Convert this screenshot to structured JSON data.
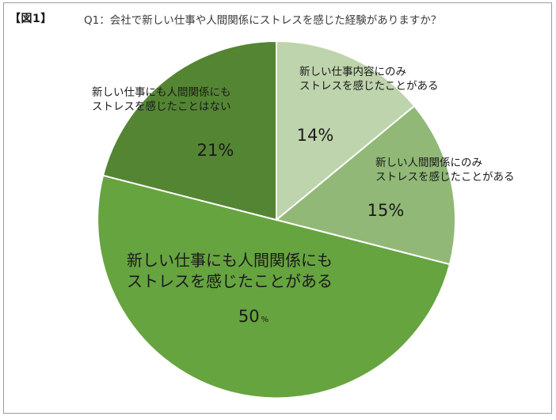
{
  "figure_label": "【図1】",
  "title": "Q1：会社で新しい仕事や人間関係にストレスを感じた経験がありますか？",
  "colors": {
    "slice_1": "#bed4ac",
    "slice_2": "#91b877",
    "slice_3": "#66a43f",
    "slice_4": "#548533"
  },
  "chart_data": {
    "type": "pie",
    "title": "Q1：会社で新しい仕事や人間関係にストレスを感じた経験がありますか？",
    "start": "12 o'clock",
    "direction": "clockwise",
    "slices": [
      {
        "label": "新しい仕事内容にのみストレスを感じたことがある",
        "label_lines": [
          "新しい仕事内容にのみ",
          "ストレスを感じたことがある"
        ],
        "value": 14,
        "value_text": "14%"
      },
      {
        "label": "新しい人間関係にのみストレスを感じたことがある",
        "label_lines": [
          "新しい人間関係にのみ",
          "ストレスを感じたことがある"
        ],
        "value": 15,
        "value_text": "15%"
      },
      {
        "label": "新しい仕事にも人間関係にもストレスを感じたことがある",
        "label_lines": [
          "新しい仕事にも人間関係にも",
          "ストレスを感じたことがある"
        ],
        "value": 50,
        "value_text": "50",
        "value_unit": "%"
      },
      {
        "label": "新しい仕事にも人間関係にもストレスを感じたことはない",
        "label_lines": [
          "新しい仕事にも人間関係にも",
          "ストレスを感じたことはない"
        ],
        "value": 21,
        "value_text": "21%"
      }
    ]
  }
}
